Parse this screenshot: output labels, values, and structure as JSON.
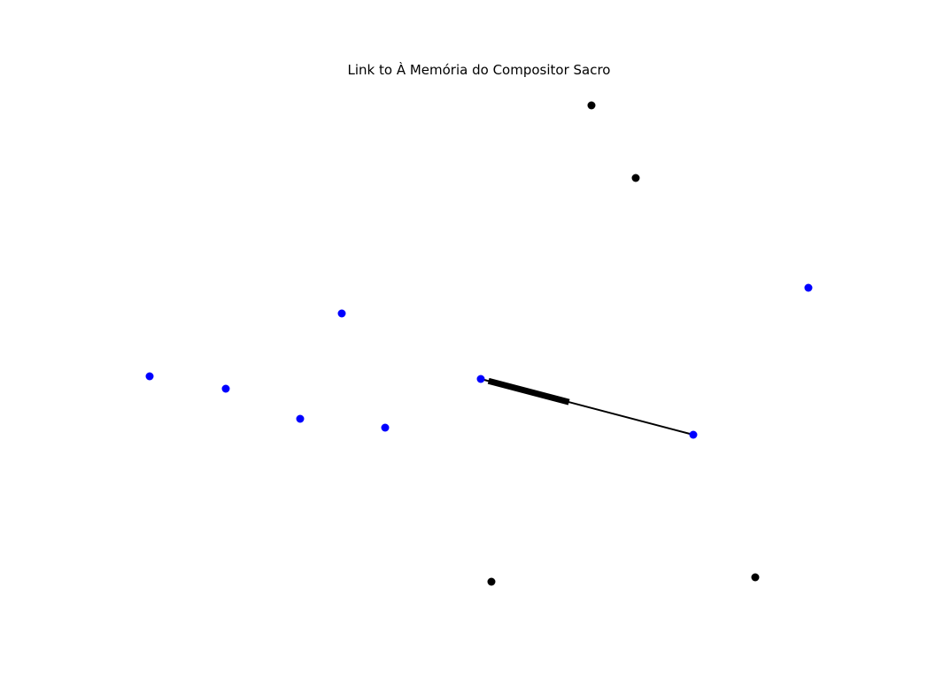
{
  "title": "Link to À Memória do Compositor Sacro",
  "colors": {
    "background": "#ffffff",
    "blue_node": "#0000ff",
    "black_node": "#000000",
    "edge": "#000000"
  },
  "graph": {
    "directed": true,
    "nodes": [
      {
        "id": "center",
        "color": "blue"
      },
      {
        "id": "target",
        "color": "blue"
      },
      {
        "id": "b1",
        "color": "blue"
      },
      {
        "id": "b2",
        "color": "blue"
      },
      {
        "id": "b3",
        "color": "blue"
      },
      {
        "id": "b4",
        "color": "blue"
      },
      {
        "id": "b5",
        "color": "blue"
      },
      {
        "id": "b6",
        "color": "blue"
      },
      {
        "id": "k1",
        "color": "black"
      },
      {
        "id": "k2",
        "color": "black"
      },
      {
        "id": "k3",
        "color": "black"
      },
      {
        "id": "k4",
        "color": "black"
      }
    ],
    "edges": [
      {
        "source": "target",
        "target": "center"
      }
    ]
  }
}
